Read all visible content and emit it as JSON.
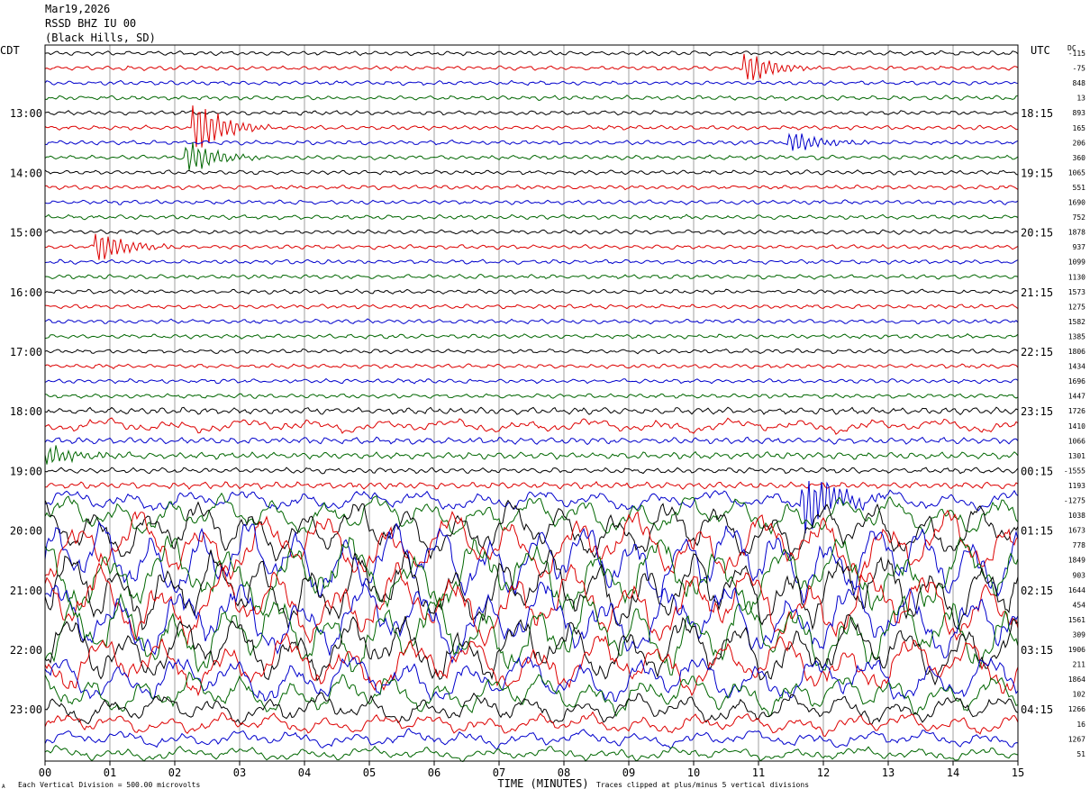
{
  "header": {
    "date": "Mar19,2026",
    "station": "RSSD BHZ IU 00",
    "location": "(Black Hills, SD)"
  },
  "axes": {
    "left_tz": "CDT",
    "right_tz": "UTC",
    "dc_label": "DC",
    "xlabel": "TIME (MINUTES)"
  },
  "footer": {
    "scale_note": "Each Vertical Division = 500.00 microvolts",
    "clip_note": "Traces clipped at plus/minus 5 vertical divisions",
    "corner_mark": "A"
  },
  "colors": {
    "trace_cycle": [
      "#000000",
      "#dd0000",
      "#0000cc",
      "#006600"
    ],
    "grid": "#888888",
    "frame": "#000000"
  },
  "chart_data": {
    "type": "line",
    "title": "",
    "xlim": [
      0,
      15
    ],
    "x_ticks": [
      "00",
      "01",
      "02",
      "03",
      "04",
      "05",
      "06",
      "07",
      "08",
      "09",
      "10",
      "11",
      "12",
      "13",
      "14",
      "15"
    ],
    "trace_count": 48,
    "traces_per_hour": 4,
    "left_hour_labels": [
      "13:00",
      "14:00",
      "15:00",
      "16:00",
      "17:00",
      "18:00",
      "19:00",
      "20:00",
      "21:00",
      "22:00",
      "23:00"
    ],
    "right_hour_labels": [
      "18:15",
      "19:15",
      "20:15",
      "21:15",
      "22:15",
      "23:15",
      "00:15",
      "01:15",
      "02:15",
      "03:15",
      "04:15"
    ],
    "dc_values": [
      "-115",
      "-75",
      "848",
      "13",
      "893",
      "165",
      "206",
      "360",
      "1065",
      "551",
      "1690",
      "752",
      "1878",
      "937",
      "1099",
      "1130",
      "1573",
      "1275",
      "1582",
      "1385",
      "1806",
      "1434",
      "1696",
      "1447",
      "1726",
      "1410",
      "1066",
      "1301",
      "-1555",
      "1193",
      "-1275",
      "1038",
      "1673",
      "778",
      "1849",
      "903",
      "1644",
      "454",
      "1561",
      "309",
      "1906",
      "211",
      "1864",
      "102",
      "1266",
      "16",
      "1267",
      "51"
    ],
    "trace_amplitude": [
      1,
      1,
      1,
      1,
      1,
      1,
      1,
      1,
      1,
      1,
      1,
      1,
      1,
      1,
      1,
      1,
      1,
      1,
      1,
      1,
      1,
      1,
      1,
      1,
      1.5,
      1.6,
      1.5,
      1.5,
      1.3,
      1.5,
      2,
      3,
      4,
      4.5,
      5,
      5,
      5,
      5,
      5,
      5,
      4.5,
      4,
      3.5,
      3,
      2.5,
      2,
      1.8,
      1.6
    ],
    "events": [
      {
        "trace": 1,
        "minute": 10.9,
        "amp": 3
      },
      {
        "trace": 5,
        "minute": 2.4,
        "amp": 5
      },
      {
        "trace": 6,
        "minute": 11.6,
        "amp": 2
      },
      {
        "trace": 7,
        "minute": 2.3,
        "amp": 3
      },
      {
        "trace": 13,
        "minute": 0.9,
        "amp": 3
      },
      {
        "trace": 30,
        "minute": 11.8,
        "amp": 6
      },
      {
        "trace": 27,
        "minute": 0.1,
        "amp": 2
      }
    ]
  }
}
